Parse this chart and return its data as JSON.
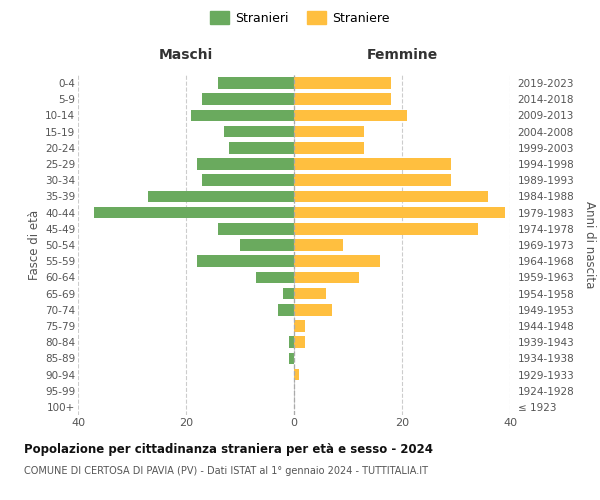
{
  "age_groups": [
    "100+",
    "95-99",
    "90-94",
    "85-89",
    "80-84",
    "75-79",
    "70-74",
    "65-69",
    "60-64",
    "55-59",
    "50-54",
    "45-49",
    "40-44",
    "35-39",
    "30-34",
    "25-29",
    "20-24",
    "15-19",
    "10-14",
    "5-9",
    "0-4"
  ],
  "birth_years": [
    "≤ 1923",
    "1924-1928",
    "1929-1933",
    "1934-1938",
    "1939-1943",
    "1944-1948",
    "1949-1953",
    "1954-1958",
    "1959-1963",
    "1964-1968",
    "1969-1973",
    "1974-1978",
    "1979-1983",
    "1984-1988",
    "1989-1993",
    "1994-1998",
    "1999-2003",
    "2004-2008",
    "2009-2013",
    "2014-2018",
    "2019-2023"
  ],
  "males": [
    0,
    0,
    0,
    1,
    1,
    0,
    3,
    2,
    7,
    18,
    10,
    14,
    37,
    27,
    17,
    18,
    12,
    13,
    19,
    17,
    14
  ],
  "females": [
    0,
    0,
    1,
    0,
    2,
    2,
    7,
    6,
    12,
    16,
    9,
    34,
    39,
    36,
    29,
    29,
    13,
    13,
    21,
    18,
    18
  ],
  "male_color": "#6aaa5e",
  "female_color": "#ffbf3f",
  "bar_height": 0.72,
  "title": "Popolazione per cittadinanza straniera per età e sesso - 2024",
  "subtitle": "COMUNE DI CERTOSA DI PAVIA (PV) - Dati ISTAT al 1° gennaio 2024 - TUTTITALIA.IT",
  "header_left": "Maschi",
  "header_right": "Femmine",
  "ylabel_left": "Fasce di età",
  "ylabel_right": "Anni di nascita",
  "legend_male": "Stranieri",
  "legend_female": "Straniere",
  "xlim": 40,
  "background_color": "#ffffff",
  "grid_color": "#cccccc"
}
